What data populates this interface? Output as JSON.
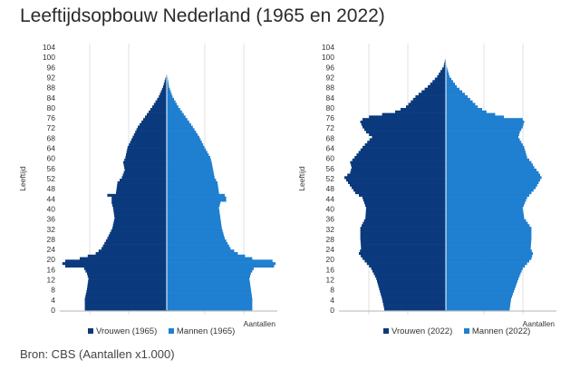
{
  "page": {
    "title": "Leeftijdsopbouw Nederland (1965 en 2022)",
    "source": "Bron: CBS (Aantallen x1.000)"
  },
  "colors": {
    "women": "#0a3a7d",
    "men": "#1f7fd0",
    "grid": "#d9d9d9",
    "axis": "#9e9e9e"
  },
  "chart_data": [
    {
      "type": "bar",
      "orientation": "horizontal-pyramid",
      "ylabel": "Leeftijd",
      "xlabel": "Aantallen",
      "age_ticks": [
        0,
        4,
        8,
        12,
        16,
        20,
        24,
        28,
        32,
        36,
        40,
        44,
        48,
        52,
        56,
        60,
        64,
        68,
        72,
        76,
        80,
        84,
        88,
        92,
        96,
        100,
        104
      ],
      "age_range": [
        0,
        104
      ],
      "value_max": 150,
      "grid": true,
      "legend": [
        "Vrouwen (1965)",
        "Mannen (1965)"
      ],
      "age_nodes": [
        0,
        4,
        8,
        12,
        14,
        16,
        17,
        18,
        19,
        20,
        22,
        24,
        28,
        32,
        36,
        40,
        42,
        43,
        44,
        45,
        46,
        50,
        52,
        55,
        58,
        60,
        64,
        68,
        72,
        76,
        80,
        84,
        88,
        92,
        94
      ],
      "series": [
        {
          "name": "Vrouwen (1965)",
          "values": [
            113,
            113,
            110,
            108,
            110,
            114,
            140,
            144,
            140,
            120,
            98,
            90,
            82,
            75,
            72,
            74,
            76,
            76,
            76,
            82,
            70,
            68,
            62,
            58,
            60,
            57,
            54,
            47,
            40,
            30,
            20,
            11,
            5,
            1,
            0
          ]
        },
        {
          "name": "Mannen (1965)",
          "values": [
            118,
            118,
            116,
            114,
            116,
            120,
            148,
            150,
            146,
            118,
            98,
            88,
            80,
            76,
            74,
            72,
            74,
            82,
            82,
            80,
            72,
            70,
            66,
            64,
            62,
            60,
            52,
            45,
            36,
            26,
            16,
            8,
            3,
            1,
            0
          ]
        }
      ]
    },
    {
      "type": "bar",
      "orientation": "horizontal-pyramid",
      "ylabel": "Leeftijd",
      "xlabel": "Aantallen",
      "age_ticks": [
        0,
        4,
        8,
        12,
        16,
        20,
        24,
        28,
        32,
        36,
        40,
        44,
        48,
        52,
        56,
        60,
        64,
        68,
        72,
        76,
        80,
        84,
        88,
        92,
        96,
        100,
        104
      ],
      "age_range": [
        0,
        104
      ],
      "value_max": 150,
      "grid": true,
      "legend": [
        "Vrouwen (2022)",
        "Mannen (2022)"
      ],
      "age_nodes": [
        0,
        4,
        8,
        12,
        16,
        20,
        22,
        24,
        28,
        32,
        36,
        40,
        44,
        46,
        48,
        50,
        52,
        54,
        56,
        58,
        60,
        64,
        68,
        70,
        72,
        74,
        75,
        76,
        78,
        80,
        84,
        88,
        92,
        96,
        100
      ],
      "series": [
        {
          "name": "Vrouwen (2022)",
          "values": [
            85,
            88,
            92,
            96,
            103,
            115,
            120,
            117,
            118,
            118,
            111,
            110,
            115,
            125,
            130,
            135,
            140,
            132,
            130,
            132,
            126,
            115,
            102,
            110,
            115,
            118,
            115,
            106,
            70,
            55,
            42,
            25,
            12,
            3,
            0
          ]
        },
        {
          "name": "Mannen (2022)",
          "values": [
            88,
            90,
            95,
            100,
            106,
            118,
            120,
            117,
            118,
            118,
            108,
            106,
            112,
            118,
            124,
            128,
            132,
            128,
            122,
            118,
            112,
            108,
            100,
            102,
            106,
            108,
            106,
            80,
            56,
            44,
            30,
            15,
            5,
            1,
            0
          ]
        }
      ]
    }
  ]
}
